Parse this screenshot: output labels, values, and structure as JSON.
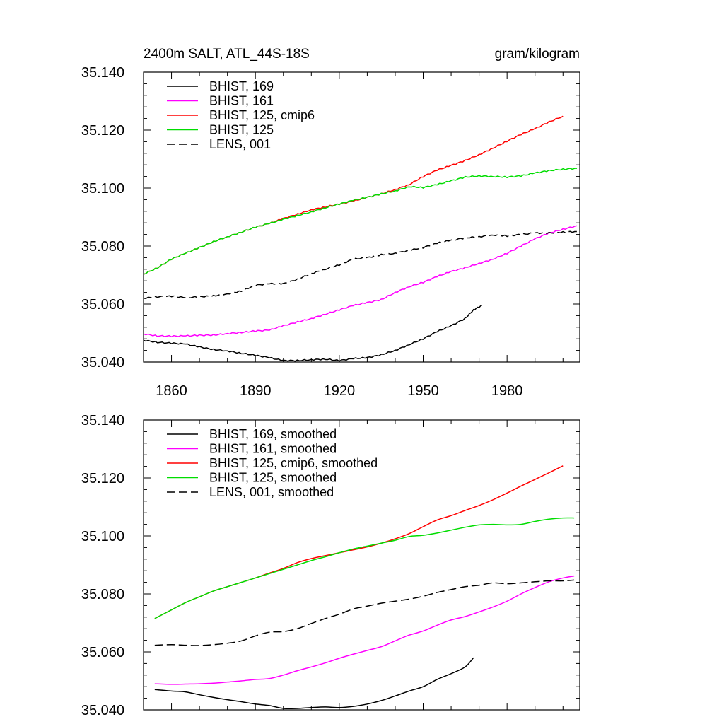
{
  "chart_data": [
    {
      "type": "line",
      "title_left": "2400m SALT, ATL_44S-18S",
      "title_right": "gram/kilogram",
      "xlabel": "",
      "ylabel": "",
      "xlim": [
        1850,
        2006
      ],
      "ylim": [
        35.04,
        35.14
      ],
      "xticks": [
        1860,
        1890,
        1920,
        1950,
        1980
      ],
      "xtick_labels": [
        "1860",
        "1890",
        "1920",
        "1950",
        "1980"
      ],
      "yticks": [
        35.04,
        35.06,
        35.08,
        35.1,
        35.12,
        35.14
      ],
      "ytick_labels": [
        "35.040",
        "35.060",
        "35.080",
        "35.100",
        "35.120",
        "35.140"
      ],
      "legend_position": "top-left",
      "series": [
        {
          "name": "BHIST, 169",
          "color": "#000000",
          "dashed": false,
          "smooth": false,
          "x": [
            1850,
            1855,
            1860,
            1865,
            1870,
            1875,
            1880,
            1885,
            1890,
            1895,
            1900,
            1905,
            1910,
            1915,
            1920,
            1925,
            1930,
            1935,
            1940,
            1945,
            1950,
            1955,
            1960,
            1965,
            1968,
            1971
          ],
          "y": [
            35.0475,
            35.0468,
            35.0465,
            35.0462,
            35.0452,
            35.0443,
            35.0438,
            35.043,
            35.0423,
            35.0415,
            35.0405,
            35.0405,
            35.0408,
            35.041,
            35.0405,
            35.0412,
            35.0415,
            35.0425,
            35.044,
            35.046,
            35.048,
            35.0505,
            35.0525,
            35.055,
            35.058,
            35.0595
          ]
        },
        {
          "name": "BHIST, 161",
          "color": "#ff00ff",
          "dashed": false,
          "smooth": false,
          "x": [
            1850,
            1855,
            1860,
            1865,
            1870,
            1875,
            1880,
            1885,
            1890,
            1895,
            1900,
            1905,
            1910,
            1915,
            1920,
            1925,
            1930,
            1935,
            1940,
            1945,
            1950,
            1955,
            1960,
            1965,
            1970,
            1975,
            1980,
            1985,
            1990,
            1995,
            2000,
            2005
          ],
          "y": [
            35.0497,
            35.049,
            35.0489,
            35.049,
            35.0492,
            35.0493,
            35.0498,
            35.0502,
            35.0507,
            35.051,
            35.0525,
            35.0538,
            35.055,
            35.0565,
            35.058,
            35.0595,
            35.0605,
            35.0615,
            35.064,
            35.066,
            35.0675,
            35.0695,
            35.0712,
            35.0725,
            35.074,
            35.0755,
            35.0775,
            35.08,
            35.0825,
            35.0845,
            35.0858,
            35.087
          ]
        },
        {
          "name": "BHIST, 125, cmip6",
          "color": "#ff0000",
          "dashed": false,
          "smooth": false,
          "x": [
            1850,
            1855,
            1860,
            1865,
            1870,
            1875,
            1880,
            1885,
            1890,
            1895,
            1900,
            1905,
            1910,
            1915,
            1920,
            1925,
            1930,
            1935,
            1940,
            1945,
            1950,
            1955,
            1960,
            1965,
            1970,
            1975,
            1980,
            1985,
            1990,
            1995,
            2000
          ],
          "y": [
            35.0703,
            35.0725,
            35.0755,
            35.0775,
            35.0795,
            35.0815,
            35.0832,
            35.0848,
            35.0865,
            35.0878,
            35.0895,
            35.091,
            35.0925,
            35.0935,
            35.0945,
            35.0955,
            35.0968,
            35.098,
            35.0995,
            35.1012,
            35.104,
            35.1062,
            35.1078,
            35.1095,
            35.1115,
            35.1138,
            35.1162,
            35.1185,
            35.1205,
            35.1228,
            35.1248
          ]
        },
        {
          "name": "BHIST, 125",
          "color": "#00dd00",
          "dashed": false,
          "smooth": false,
          "x": [
            1850,
            1855,
            1860,
            1865,
            1870,
            1875,
            1880,
            1885,
            1890,
            1895,
            1900,
            1905,
            1910,
            1915,
            1920,
            1925,
            1930,
            1935,
            1940,
            1945,
            1950,
            1955,
            1960,
            1965,
            1970,
            1975,
            1980,
            1985,
            1990,
            1995,
            2000,
            2005
          ],
          "y": [
            35.0703,
            35.0725,
            35.0755,
            35.0775,
            35.0795,
            35.0815,
            35.0832,
            35.0848,
            35.0865,
            35.0878,
            35.0892,
            35.0905,
            35.0918,
            35.0932,
            35.0945,
            35.0958,
            35.0968,
            35.098,
            35.099,
            35.1005,
            35.1002,
            35.1012,
            35.1025,
            35.1038,
            35.1042,
            35.104,
            35.1038,
            35.1042,
            35.1052,
            35.106,
            35.1065,
            35.1068
          ]
        },
        {
          "name": "LENS, 001",
          "color": "#000000",
          "dashed": true,
          "smooth": false,
          "x": [
            1850,
            1855,
            1860,
            1865,
            1870,
            1875,
            1880,
            1885,
            1890,
            1895,
            1900,
            1905,
            1910,
            1915,
            1920,
            1925,
            1930,
            1935,
            1940,
            1945,
            1950,
            1955,
            1960,
            1965,
            1970,
            1975,
            1980,
            1985,
            1990,
            1995,
            2000,
            2005
          ],
          "y": [
            35.062,
            35.0625,
            35.0627,
            35.0622,
            35.0625,
            35.0628,
            35.0635,
            35.0645,
            35.0665,
            35.067,
            35.067,
            35.0685,
            35.0705,
            35.072,
            35.0735,
            35.0755,
            35.076,
            35.077,
            35.0775,
            35.0785,
            35.0795,
            35.081,
            35.082,
            35.0828,
            35.0832,
            35.0838,
            35.0835,
            35.084,
            35.0845,
            35.0845,
            35.0848,
            35.085
          ]
        }
      ]
    },
    {
      "type": "line",
      "title_left": "",
      "title_right": "",
      "xlabel": "",
      "ylabel": "",
      "xlim": [
        1850,
        2006
      ],
      "ylim": [
        35.04,
        35.14
      ],
      "xticks": [
        1860,
        1890,
        1920,
        1950,
        1980
      ],
      "xtick_labels": [],
      "yticks": [
        35.04,
        35.06,
        35.08,
        35.1,
        35.12,
        35.14
      ],
      "ytick_labels": [
        "35.040",
        "35.060",
        "35.080",
        "35.100",
        "35.120",
        "35.140"
      ],
      "legend_position": "top-left",
      "series": [
        {
          "name": "BHIST, 169, smoothed",
          "color": "#000000",
          "dashed": false,
          "smooth": true,
          "x": [
            1854,
            1860,
            1865,
            1870,
            1875,
            1880,
            1885,
            1890,
            1895,
            1900,
            1905,
            1910,
            1915,
            1920,
            1925,
            1930,
            1935,
            1940,
            1945,
            1950,
            1955,
            1960,
            1965,
            1968
          ],
          "y": [
            35.047,
            35.0465,
            35.0462,
            35.0452,
            35.0443,
            35.0435,
            35.0428,
            35.042,
            35.0415,
            35.0405,
            35.0405,
            35.0408,
            35.041,
            35.0408,
            35.0412,
            35.042,
            35.0432,
            35.0448,
            35.0465,
            35.048,
            35.0505,
            35.0525,
            35.0548,
            35.058
          ]
        },
        {
          "name": "BHIST, 161, smoothed",
          "color": "#ff00ff",
          "dashed": false,
          "smooth": true,
          "x": [
            1854,
            1860,
            1865,
            1870,
            1875,
            1880,
            1885,
            1890,
            1895,
            1900,
            1905,
            1910,
            1915,
            1920,
            1925,
            1930,
            1935,
            1940,
            1945,
            1950,
            1955,
            1960,
            1965,
            1970,
            1975,
            1980,
            1985,
            1990,
            1995,
            2000,
            2004
          ],
          "y": [
            35.049,
            35.0488,
            35.0489,
            35.049,
            35.0492,
            35.0496,
            35.05,
            35.0505,
            35.0508,
            35.052,
            35.0535,
            35.0548,
            35.0562,
            35.0578,
            35.0592,
            35.0605,
            35.0618,
            35.0638,
            35.0658,
            35.0672,
            35.0692,
            35.071,
            35.0722,
            35.0738,
            35.0755,
            35.0775,
            35.08,
            35.0822,
            35.0842,
            35.0855,
            35.0862
          ]
        },
        {
          "name": "BHIST, 125, cmip6, smoothed",
          "color": "#ff0000",
          "dashed": false,
          "smooth": true,
          "x": [
            1854,
            1860,
            1865,
            1870,
            1875,
            1880,
            1885,
            1890,
            1895,
            1900,
            1905,
            1910,
            1915,
            1920,
            1925,
            1930,
            1935,
            1940,
            1945,
            1950,
            1955,
            1960,
            1965,
            1970,
            1975,
            1980,
            1985,
            1990,
            1995,
            2000
          ],
          "y": [
            35.0715,
            35.0745,
            35.077,
            35.079,
            35.081,
            35.0825,
            35.084,
            35.0855,
            35.0872,
            35.0888,
            35.0908,
            35.0922,
            35.0932,
            35.0942,
            35.0952,
            35.0962,
            35.0975,
            35.099,
            35.1008,
            35.1032,
            35.1055,
            35.107,
            35.1088,
            35.1105,
            35.1125,
            35.1148,
            35.1172,
            35.1195,
            35.1218,
            35.1242
          ]
        },
        {
          "name": "BHIST, 125, smoothed",
          "color": "#00dd00",
          "dashed": false,
          "smooth": true,
          "x": [
            1854,
            1860,
            1865,
            1870,
            1875,
            1880,
            1885,
            1890,
            1895,
            1900,
            1905,
            1910,
            1915,
            1920,
            1925,
            1930,
            1935,
            1940,
            1945,
            1950,
            1955,
            1960,
            1965,
            1970,
            1975,
            1980,
            1985,
            1990,
            1995,
            2000,
            2004
          ],
          "y": [
            35.0715,
            35.0745,
            35.077,
            35.079,
            35.081,
            35.0825,
            35.084,
            35.0855,
            35.087,
            35.0885,
            35.09,
            35.0915,
            35.0928,
            35.0942,
            35.0955,
            35.0965,
            35.0975,
            35.0985,
            35.0998,
            35.1002,
            35.101,
            35.102,
            35.103,
            35.1038,
            35.104,
            35.1038,
            35.104,
            35.105,
            35.1058,
            35.1062,
            35.1062
          ]
        },
        {
          "name": "LENS, 001, smoothed",
          "color": "#000000",
          "dashed": true,
          "smooth": true,
          "x": [
            1854,
            1860,
            1865,
            1870,
            1875,
            1880,
            1885,
            1890,
            1895,
            1900,
            1905,
            1910,
            1915,
            1920,
            1925,
            1930,
            1935,
            1940,
            1945,
            1950,
            1955,
            1960,
            1965,
            1970,
            1975,
            1980,
            1985,
            1990,
            1995,
            2000,
            2004
          ],
          "y": [
            35.0623,
            35.0625,
            35.0623,
            35.0622,
            35.0625,
            35.063,
            35.0638,
            35.0655,
            35.0668,
            35.067,
            35.068,
            35.0698,
            35.0715,
            35.073,
            35.0748,
            35.0758,
            35.0768,
            35.0775,
            35.0782,
            35.0792,
            35.0805,
            35.0815,
            35.0825,
            35.083,
            35.0838,
            35.0835,
            35.0838,
            35.0842,
            35.0845,
            35.0845,
            35.0848
          ]
        }
      ]
    }
  ]
}
